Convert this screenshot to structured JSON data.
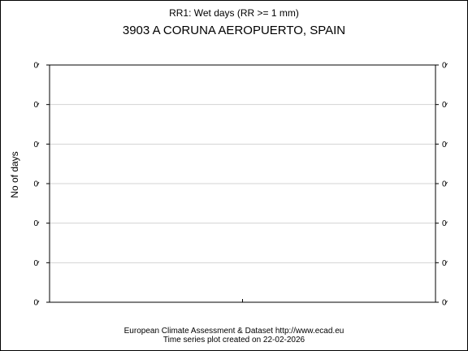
{
  "chart_data": {
    "type": "line",
    "title": "RR1: Wet days (RR >= 1 mm)",
    "subtitle": "3903 A CORUNA AEROPUERTO, SPAIN",
    "xlabel": "",
    "ylabel": "No of days",
    "y_tick_labels": [
      "0",
      "0",
      "0",
      "0",
      "0",
      "0",
      "0"
    ],
    "x_tick_labels": [],
    "series": [],
    "grid": true,
    "legend": "none"
  },
  "footer": {
    "line1": "European Climate Assessment & Dataset  http://www.ecad.eu",
    "line2": "Time series plot created on 22-02-2026"
  },
  "colors": {
    "axis": "#000000",
    "grid": "#d3d3d3",
    "background": "#ffffff"
  }
}
